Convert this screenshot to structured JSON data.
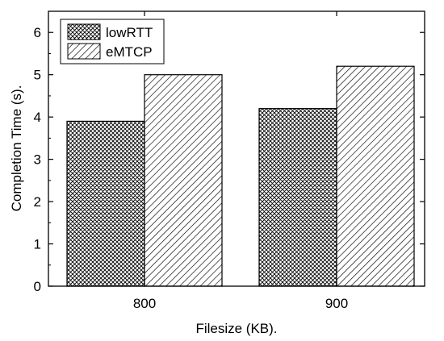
{
  "chart_data": {
    "type": "bar",
    "categories": [
      "800",
      "900"
    ],
    "series": [
      {
        "name": "lowRTT",
        "values": [
          3.9,
          4.2
        ],
        "pattern": "crosshatch"
      },
      {
        "name": "eMTCP",
        "values": [
          5.0,
          5.2
        ],
        "pattern": "diagonal"
      }
    ],
    "xlabel": "Filesize (KB).",
    "ylabel": "Completion Time (s).",
    "ylim": [
      0,
      6.5
    ],
    "yticks": [
      0,
      1,
      2,
      3,
      4,
      5,
      6
    ],
    "legend": "top-left",
    "grid": false
  }
}
